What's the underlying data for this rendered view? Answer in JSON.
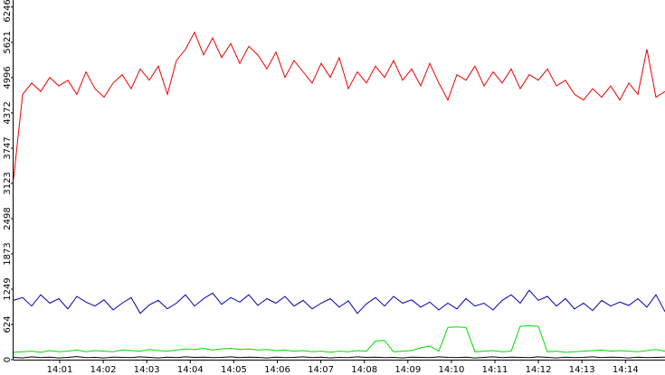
{
  "chart_data": {
    "type": "line",
    "ylim": [
      0,
      6372
    ],
    "yticks": [
      0,
      624,
      1249,
      1873,
      2498,
      3123,
      3747,
      4372,
      4996,
      5621,
      6246
    ],
    "xticks": [
      "14:01",
      "14:02",
      "14:03",
      "14:04",
      "14:05",
      "14:06",
      "14:07",
      "14:08",
      "14:09",
      "14:10",
      "14:11",
      "14:12",
      "14:13",
      "14:14"
    ],
    "series": [
      {
        "color": "#ee0000",
        "values": [
          3200,
          4700,
          4900,
          4750,
          5000,
          4850,
          4950,
          4700,
          5100,
          4800,
          4650,
          4900,
          5050,
          4800,
          5150,
          4950,
          5200,
          4700,
          5300,
          5500,
          5800,
          5400,
          5700,
          5350,
          5600,
          5250,
          5550,
          5400,
          5150,
          5450,
          5000,
          5300,
          5100,
          4900,
          5250,
          5000,
          5350,
          4800,
          5100,
          4900,
          5200,
          5000,
          5300,
          4950,
          5150,
          4850,
          5250,
          4900,
          4600,
          5050,
          4950,
          5200,
          4850,
          5100,
          4900,
          5150,
          4800,
          5050,
          4950,
          5150,
          4850,
          4950,
          4700,
          4600,
          4800,
          4650,
          4850,
          4600,
          4900,
          4700,
          5500,
          4650,
          4750
        ]
      },
      {
        "color": "#0000aa",
        "values": [
          1050,
          1100,
          950,
          1150,
          1000,
          1080,
          900,
          1120,
          1020,
          950,
          1060,
          880,
          1000,
          1100,
          820,
          970,
          1050,
          900,
          1000,
          1150,
          950,
          1080,
          1180,
          980,
          1100,
          1020,
          1150,
          960,
          1080,
          1000,
          1120,
          950,
          1050,
          900,
          1000,
          1080,
          930,
          1040,
          820,
          990,
          1100,
          950,
          1120,
          1000,
          1060,
          930,
          1020,
          880,
          1000,
          900,
          1080,
          950,
          1000,
          880,
          1050,
          1150,
          1000,
          1230,
          1050,
          1120,
          950,
          1080,
          900,
          1000,
          870,
          1050,
          950,
          1020,
          960,
          1080,
          930,
          1150,
          850
        ]
      },
      {
        "color": "#00dd00",
        "values": [
          130,
          140,
          150,
          130,
          160,
          140,
          150,
          170,
          140,
          160,
          150,
          140,
          170,
          160,
          150,
          180,
          160,
          150,
          170,
          190,
          180,
          200,
          170,
          190,
          200,
          180,
          190,
          170,
          180,
          160,
          170,
          150,
          160,
          140,
          150,
          130,
          150,
          140,
          160,
          150,
          330,
          340,
          140,
          150,
          160,
          210,
          240,
          150,
          570,
          580,
          570,
          140,
          150,
          160,
          140,
          150,
          590,
          600,
          590,
          140,
          150,
          130,
          140,
          150,
          160,
          170,
          150,
          160,
          150,
          140,
          160,
          180,
          150
        ]
      },
      {
        "color": "#000000",
        "values": [
          40,
          30,
          50,
          35,
          45,
          30,
          40,
          55,
          35,
          40,
          30,
          45,
          40,
          35,
          50,
          40,
          30,
          45,
          35,
          50,
          40,
          45,
          35,
          40,
          50,
          35,
          45,
          40,
          30,
          45,
          35,
          40,
          50,
          35,
          45,
          30,
          40,
          35,
          50,
          40,
          45,
          35,
          40,
          30,
          45,
          40,
          35,
          50,
          40,
          35,
          45,
          30,
          40,
          50,
          35,
          45,
          40,
          35,
          50,
          40,
          30,
          45,
          35,
          40,
          50,
          35,
          45,
          40,
          30,
          45,
          35,
          40,
          45
        ]
      }
    ]
  }
}
